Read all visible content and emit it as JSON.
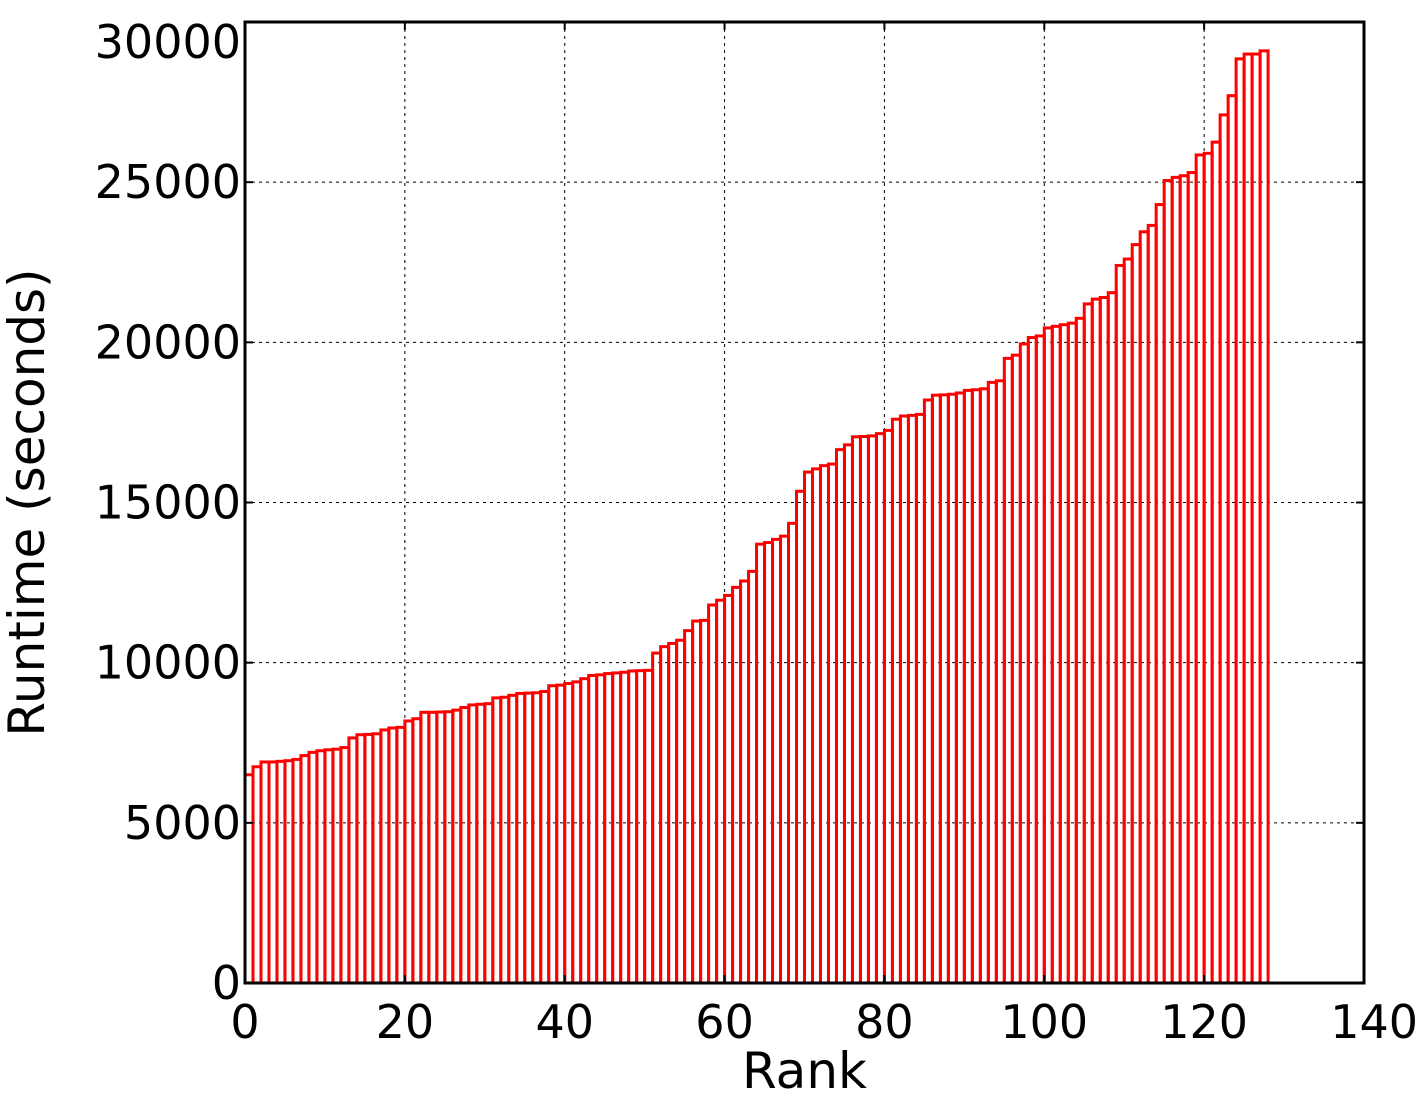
{
  "colors": {
    "bar_edge": "#ff0000",
    "axes": "#000000",
    "background": "#ffffff"
  },
  "chart_data": {
    "type": "bar",
    "title": "",
    "xlabel": "Rank",
    "ylabel": "Runtime (seconds)",
    "xlim": [
      0,
      140
    ],
    "ylim": [
      0,
      30000
    ],
    "xticks": [
      0,
      20,
      40,
      60,
      80,
      100,
      120,
      140
    ],
    "yticks": [
      0,
      5000,
      10000,
      15000,
      20000,
      25000,
      30000
    ],
    "grid": true,
    "bar_width": 1,
    "x": [
      0,
      1,
      2,
      3,
      4,
      5,
      6,
      7,
      8,
      9,
      10,
      11,
      12,
      13,
      14,
      15,
      16,
      17,
      18,
      19,
      20,
      21,
      22,
      23,
      24,
      25,
      26,
      27,
      28,
      29,
      30,
      31,
      32,
      33,
      34,
      35,
      36,
      37,
      38,
      39,
      40,
      41,
      42,
      43,
      44,
      45,
      46,
      47,
      48,
      49,
      50,
      51,
      52,
      53,
      54,
      55,
      56,
      57,
      58,
      59,
      60,
      61,
      62,
      63,
      64,
      65,
      66,
      67,
      68,
      69,
      70,
      71,
      72,
      73,
      74,
      75,
      76,
      77,
      78,
      79,
      80,
      81,
      82,
      83,
      84,
      85,
      86,
      87,
      88,
      89,
      90,
      91,
      92,
      93,
      94,
      95,
      96,
      97,
      98,
      99,
      100,
      101,
      102,
      103,
      104,
      105,
      106,
      107,
      108,
      109,
      110,
      111,
      112,
      113,
      114,
      115,
      116,
      117,
      118,
      119,
      120,
      121,
      122,
      123,
      124,
      125,
      126,
      127
    ],
    "values": [
      6500,
      6750,
      6900,
      6900,
      6920,
      6940,
      6980,
      7100,
      7200,
      7250,
      7280,
      7300,
      7350,
      7650,
      7750,
      7760,
      7780,
      7900,
      7960,
      7980,
      8180,
      8250,
      8450,
      8450,
      8460,
      8470,
      8520,
      8600,
      8680,
      8700,
      8720,
      8900,
      8920,
      8980,
      9040,
      9050,
      9060,
      9100,
      9280,
      9300,
      9350,
      9400,
      9500,
      9600,
      9620,
      9660,
      9680,
      9700,
      9740,
      9750,
      9760,
      10300,
      10500,
      10600,
      10700,
      11000,
      11300,
      11320,
      11800,
      11950,
      12100,
      12350,
      12550,
      12850,
      13700,
      13750,
      13850,
      13950,
      14350,
      15350,
      15950,
      16050,
      16150,
      16200,
      16650,
      16800,
      17050,
      17060,
      17080,
      17150,
      17250,
      17600,
      17700,
      17720,
      17750,
      18200,
      18350,
      18360,
      18380,
      18420,
      18500,
      18520,
      18550,
      18750,
      18800,
      19500,
      19600,
      19950,
      20150,
      20200,
      20450,
      20500,
      20550,
      20600,
      20750,
      21200,
      21350,
      21400,
      21550,
      22400,
      22600,
      23050,
      23450,
      23650,
      24300,
      25050,
      25150,
      25200,
      25300,
      25850,
      25900,
      26250,
      27100,
      27700,
      28850,
      29000,
      29000,
      29100
    ]
  }
}
